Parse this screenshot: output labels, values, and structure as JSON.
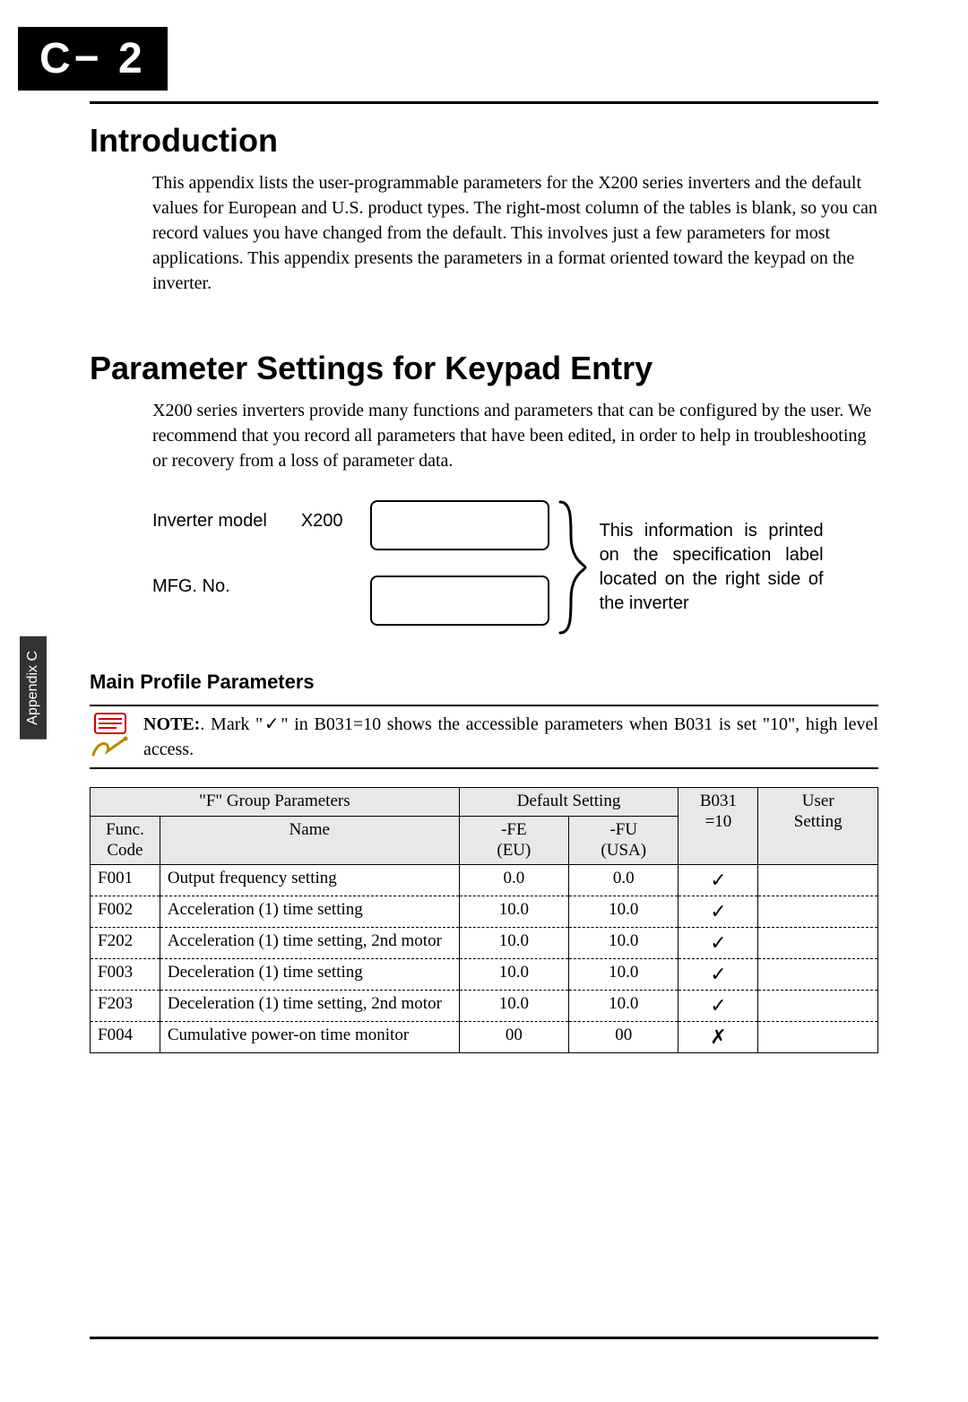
{
  "corner_tag": "C− 2",
  "sidebar_label": "Appendix C",
  "intro": {
    "title": "Introduction",
    "body": "This appendix lists the user-programmable parameters for the X200 series inverters and the default values for European and U.S. product types. The right-most column of the tables is blank, so you can record values you have changed from the default. This involves just a few parameters for most applications. This appendix presents the parameters in a format oriented toward the keypad on the inverter."
  },
  "param_section": {
    "title": "Parameter Settings for Keypad Entry",
    "body": "X200 series inverters provide many functions and parameters that can be configured by the user. We recommend that you record all parameters that have been edited, in order to help in troubleshooting or recovery from a loss of parameter data."
  },
  "inverter_block": {
    "model_label": "Inverter model",
    "model_value": "X200",
    "mfg_label": "MFG. No.",
    "right_text": "This information is printed on the specification label located on the right side of the inverter"
  },
  "main_profile_title": "Main Profile Parameters",
  "note": {
    "label": "NOTE:",
    "text": ". Mark \"✓\" in B031=10 shows the accessible parameters when B031 is set \"10\", high level access."
  },
  "table": {
    "group_header": "\"F\" Group Parameters",
    "default_header": "Default Setting",
    "func_header": "Func.\nCode",
    "name_header": "Name",
    "fe_header": "-FE\n(EU)",
    "fu_header": "-FU\n(USA)",
    "b031_header": "B031\n=10",
    "user_header": "User\nSetting",
    "rows": [
      {
        "func": "F001",
        "name": "Output frequency setting",
        "fe": "0.0",
        "fu": "0.0",
        "b031": "✓",
        "user": ""
      },
      {
        "func": "F002",
        "name": "Acceleration (1) time setting",
        "fe": "10.0",
        "fu": "10.0",
        "b031": "✓",
        "user": ""
      },
      {
        "func": "F202",
        "name": "Acceleration (1) time setting, 2nd motor",
        "fe": "10.0",
        "fu": "10.0",
        "b031": "✓",
        "user": ""
      },
      {
        "func": "F003",
        "name": "Deceleration (1) time setting",
        "fe": "10.0",
        "fu": "10.0",
        "b031": "✓",
        "user": ""
      },
      {
        "func": "F203",
        "name": "Deceleration (1) time setting, 2nd motor",
        "fe": "10.0",
        "fu": "10.0",
        "b031": "✓",
        "user": ""
      },
      {
        "func": "F004",
        "name": "Cumulative power-on time monitor",
        "fe": "00",
        "fu": "00",
        "b031": "✗",
        "user": ""
      }
    ]
  },
  "colors": {
    "tag_bg": "#000000",
    "tag_fg": "#ffffff",
    "table_header_bg": "#e8e8e8",
    "sidebar_bg": "#333333"
  }
}
